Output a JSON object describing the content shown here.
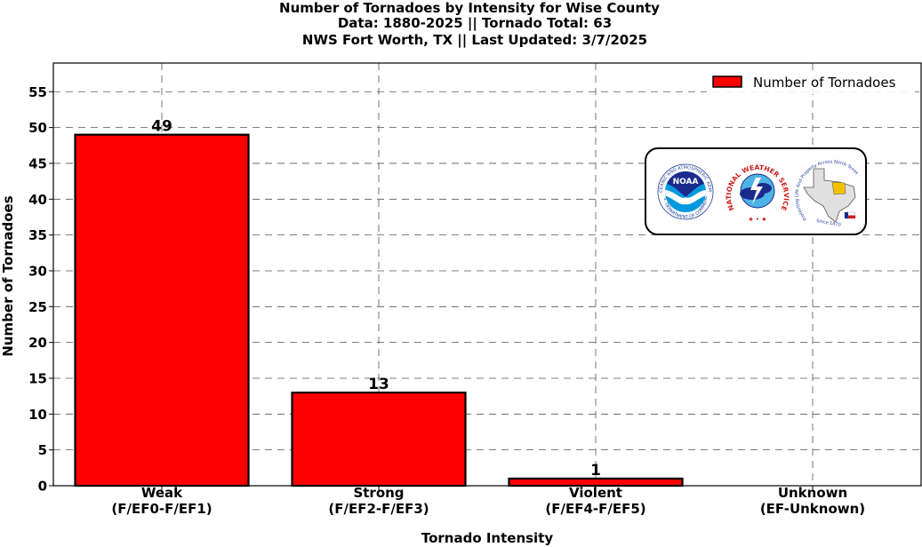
{
  "title_lines": [
    "Number of Tornadoes by Intensity for Wise County",
    "Data: 1880-2025 || Tornado Total: 63",
    "NWS Fort Worth, TX || Last Updated: 3/7/2025"
  ],
  "legend_label": "Number of Tornadoes",
  "logos": {
    "noaa_text": "NOAA",
    "noaa_ring_top": "NATIONAL OCEANIC AND ATMOSPHERIC ADMINISTRATION",
    "noaa_ring_bottom": "U.S. DEPARTMENT OF COMMERCE",
    "nws_ring": "NATIONAL WEATHER SERVICE",
    "wfo_ring": "Protecting Life And Property Across North Texas",
    "wfo_since": "Since 1870"
  },
  "colors": {
    "bar": "#ff0000",
    "edge": "#000000",
    "grid": "#555555"
  },
  "chart_data": {
    "type": "bar",
    "categories": [
      [
        "Weak",
        "(F/EF0-F/EF1)"
      ],
      [
        "Strong",
        "(F/EF2-F/EF3)"
      ],
      [
        "Violent",
        "(F/EF4-F/EF5)"
      ],
      [
        "Unknown",
        "(EF-Unknown)"
      ]
    ],
    "series": [
      {
        "name": "Number of Tornadoes",
        "values": [
          49,
          13,
          1,
          0
        ]
      }
    ],
    "data_labels": [
      "49",
      "13",
      "1",
      ""
    ],
    "xlabel": "Tornado Intensity",
    "ylabel": "Number of Tornadoes",
    "ylim": [
      0,
      59
    ],
    "yticks": [
      0,
      5,
      10,
      15,
      20,
      25,
      30,
      35,
      40,
      45,
      50,
      55
    ],
    "grid": true,
    "grid_style": "dashed",
    "legend_position": "upper right"
  }
}
